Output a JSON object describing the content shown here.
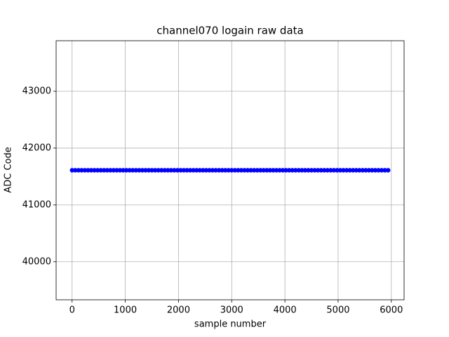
{
  "chart_data": {
    "type": "scatter",
    "title": "channel070 logain raw data",
    "x_label": "sample number",
    "y_label": "ADC Code",
    "x": [
      0,
      60,
      120,
      180,
      240,
      300,
      360,
      420,
      480,
      540,
      600,
      660,
      720,
      780,
      840,
      900,
      960,
      1020,
      1080,
      1140,
      1200,
      1260,
      1320,
      1380,
      1440,
      1500,
      1560,
      1620,
      1680,
      1740,
      1800,
      1860,
      1920,
      1980,
      2040,
      2100,
      2160,
      2220,
      2280,
      2340,
      2400,
      2460,
      2520,
      2580,
      2640,
      2700,
      2760,
      2820,
      2880,
      2940,
      3000,
      3060,
      3120,
      3180,
      3240,
      3300,
      3360,
      3420,
      3480,
      3540,
      3600,
      3660,
      3720,
      3780,
      3840,
      3900,
      3960,
      4020,
      4080,
      4140,
      4200,
      4260,
      4320,
      4380,
      4440,
      4500,
      4560,
      4620,
      4680,
      4740,
      4800,
      4860,
      4920,
      4980,
      5040,
      5100,
      5160,
      5220,
      5280,
      5340,
      5400,
      5460,
      5520,
      5580,
      5640,
      5700,
      5760,
      5820,
      5880,
      5940
    ],
    "values": [
      41610,
      41610,
      41610,
      41610,
      41610,
      41610,
      41610,
      41610,
      41610,
      41610,
      41610,
      41610,
      41610,
      41610,
      41610,
      41610,
      41610,
      41610,
      41610,
      41610,
      41610,
      41610,
      41610,
      41610,
      41610,
      41610,
      41610,
      41610,
      41610,
      41610,
      41610,
      41610,
      41610,
      41610,
      41610,
      41610,
      41610,
      41610,
      41610,
      41610,
      41610,
      41610,
      41610,
      41610,
      41610,
      41610,
      41610,
      41610,
      41610,
      41610,
      41610,
      41610,
      41610,
      41610,
      41610,
      41610,
      41610,
      41610,
      41610,
      41610,
      41610,
      41610,
      41610,
      41610,
      41610,
      41610,
      41610,
      41610,
      41610,
      41610,
      41610,
      41610,
      41610,
      41610,
      41610,
      41610,
      41610,
      41610,
      41610,
      41610,
      41610,
      41610,
      41610,
      41610,
      41610,
      41610,
      41610,
      41610,
      41610,
      41610,
      41610,
      41610,
      41610,
      41610,
      41610,
      41610,
      41610,
      41610,
      41610,
      41610
    ],
    "color": "#0000ff",
    "xlim": [
      -300,
      6240
    ],
    "xticks": [
      0,
      1000,
      2000,
      3000,
      4000,
      5000,
      6000
    ],
    "ylim": [
      39330,
      43890
    ],
    "yticks": [
      40000,
      41000,
      42000,
      43000
    ],
    "grid": true
  }
}
